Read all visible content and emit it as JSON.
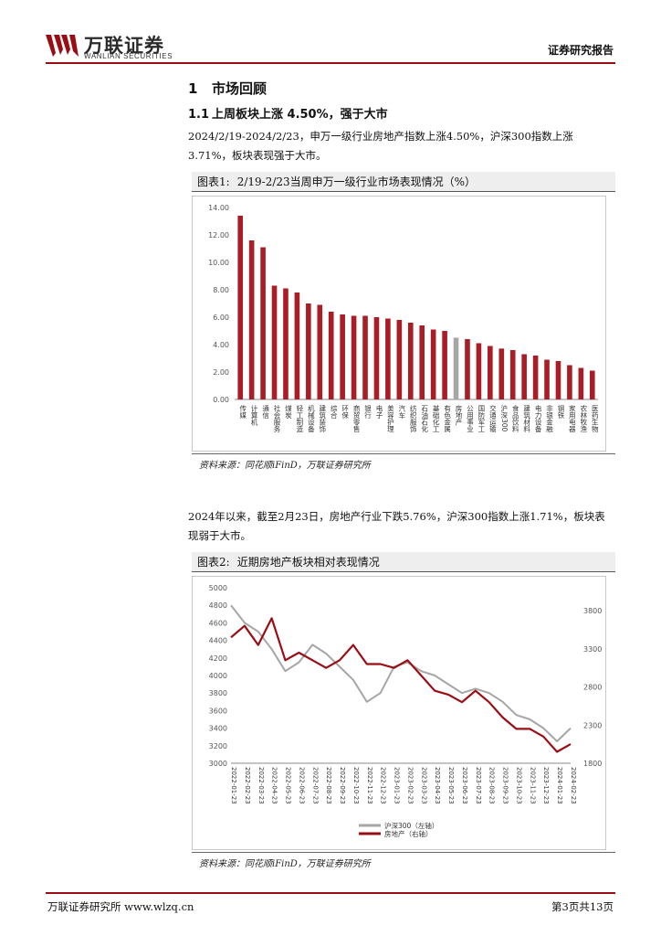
{
  "header": {
    "logo_cn": "万联证券",
    "logo_en": "WANLIAN SECURITIES",
    "report_type": "证券研究报告",
    "brand_color": "#9b0d14"
  },
  "section": {
    "number": "1",
    "title": "市场回顾"
  },
  "subsection": {
    "number": "1.1",
    "title": "上周板块上涨 4.50%，强于大市"
  },
  "paragraph1": "2024/2/19-2024/2/23，申万一级行业房地产指数上涨4.50%，沪深300指数上涨3.71%，板块表现强于大市。",
  "figure1": {
    "label": "图表1:",
    "title": "2/19-2/23当周申万一级行业市场表现情况（%）",
    "source": "资料来源：同花顺iFinD，万联证券研究所"
  },
  "paragraph2": "2024年以来，截至2月23日，房地产行业下跌5.76%，沪深300指数上涨1.71%，板块表现弱于大市。",
  "figure2": {
    "label": "图表2:",
    "title": "近期房地产板块相对表现情况",
    "source": "资料来源：同花顺iFinD，万联证券研究所"
  },
  "footer": {
    "left": "万联证券研究所 www.wlzq.cn",
    "right": "第3页共13页"
  },
  "chart_data": [
    {
      "type": "bar",
      "title": "2/19-2/23当周申万一级行业市场表现情况（%）",
      "categories": [
        "传媒",
        "计算机",
        "通信",
        "社会服务",
        "煤炭",
        "轻工制造",
        "机械设备",
        "建筑装饰",
        "综合",
        "环保",
        "商贸零售",
        "银行",
        "电子",
        "美容护理",
        "汽车",
        "纺织服饰",
        "石油石化",
        "基础化工",
        "有色金属",
        "房地产",
        "公用事业",
        "国防军工",
        "交通运输",
        "沪深300",
        "食品饮料",
        "建筑材料",
        "电力设备",
        "非银金融",
        "钢铁",
        "家用电器",
        "农林牧渔",
        "医药生物"
      ],
      "values": [
        13.4,
        11.6,
        11.1,
        8.3,
        8.1,
        7.8,
        7.0,
        6.9,
        6.4,
        6.2,
        6.1,
        6.1,
        6.0,
        5.9,
        5.8,
        5.6,
        5.4,
        5.1,
        5.0,
        4.5,
        4.4,
        4.1,
        3.9,
        3.71,
        3.6,
        3.3,
        3.2,
        2.9,
        2.8,
        2.5,
        2.3,
        2.1
      ],
      "highlight": [
        "房地产",
        "沪深300"
      ],
      "bar_color": "#a81d26",
      "highlight_color": "#a6a6a6",
      "ylim": [
        0,
        14
      ],
      "yticks": [
        "0.00",
        "2.00",
        "4.00",
        "6.00",
        "8.00",
        "10.00",
        "12.00",
        "14.00"
      ],
      "xlabel": "",
      "ylabel": ""
    },
    {
      "type": "line",
      "title": "近期房地产板块相对表现情况",
      "x_ticks": [
        "2022-01-23",
        "2022-02-23",
        "2022-03-23",
        "2022-04-23",
        "2022-05-23",
        "2022-06-23",
        "2022-07-23",
        "2022-08-23",
        "2022-09-23",
        "2022-10-23",
        "2022-11-23",
        "2022-12-23",
        "2023-01-23",
        "2023-02-23",
        "2023-03-23",
        "2023-04-23",
        "2023-05-23",
        "2023-06-23",
        "2023-07-23",
        "2023-08-23",
        "2023-09-23",
        "2023-10-23",
        "2023-11-23",
        "2023-12-23",
        "2024-01-23",
        "2024-02-23"
      ],
      "left_axis": {
        "range": [
          3000,
          5000
        ],
        "ticks": [
          "3000",
          "3200",
          "3400",
          "3600",
          "3800",
          "4000",
          "4200",
          "4400",
          "4600",
          "4800",
          "5000"
        ]
      },
      "right_axis": {
        "range": [
          1800,
          4100
        ],
        "ticks": [
          "1800",
          "2300",
          "2800",
          "3300",
          "3800"
        ]
      },
      "series": [
        {
          "name": "沪深300（左轴）",
          "color": "#a6a6a6",
          "axis": "left",
          "values": [
            4800,
            4600,
            4500,
            4300,
            4050,
            4150,
            4350,
            4250,
            4100,
            3950,
            3700,
            3800,
            4100,
            4150,
            4050,
            4000,
            3900,
            3800,
            3850,
            3800,
            3700,
            3550,
            3500,
            3400,
            3250,
            3400
          ]
        },
        {
          "name": "房地产（右轴）",
          "color": "#9b0d14",
          "axis": "right",
          "values": [
            3450,
            3600,
            3350,
            3700,
            3150,
            3250,
            3150,
            3050,
            3150,
            3350,
            3100,
            3100,
            3050,
            3150,
            2950,
            2750,
            2700,
            2600,
            2750,
            2600,
            2400,
            2250,
            2250,
            2150,
            1950,
            2050
          ]
        }
      ]
    }
  ]
}
